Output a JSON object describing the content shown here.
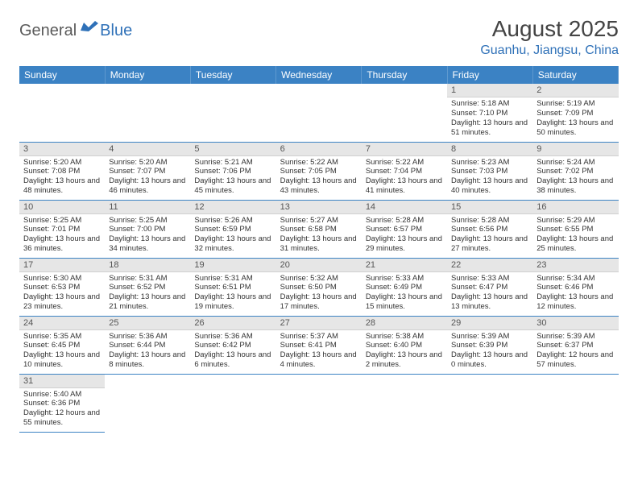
{
  "logo": {
    "part1": "General",
    "part2": "Blue"
  },
  "title": "August 2025",
  "location": "Guanhu, Jiangsu, China",
  "colors": {
    "header_bg": "#3b82c4",
    "header_text": "#ffffff",
    "daynum_bg": "#e6e6e6",
    "border": "#3b82c4",
    "logo_gray": "#5a5a5a",
    "logo_blue": "#2f71b8"
  },
  "weekdays": [
    "Sunday",
    "Monday",
    "Tuesday",
    "Wednesday",
    "Thursday",
    "Friday",
    "Saturday"
  ],
  "startOffset": 5,
  "days": [
    {
      "n": 1,
      "sr": "5:18 AM",
      "ss": "7:10 PM",
      "dl": "13 hours and 51 minutes."
    },
    {
      "n": 2,
      "sr": "5:19 AM",
      "ss": "7:09 PM",
      "dl": "13 hours and 50 minutes."
    },
    {
      "n": 3,
      "sr": "5:20 AM",
      "ss": "7:08 PM",
      "dl": "13 hours and 48 minutes."
    },
    {
      "n": 4,
      "sr": "5:20 AM",
      "ss": "7:07 PM",
      "dl": "13 hours and 46 minutes."
    },
    {
      "n": 5,
      "sr": "5:21 AM",
      "ss": "7:06 PM",
      "dl": "13 hours and 45 minutes."
    },
    {
      "n": 6,
      "sr": "5:22 AM",
      "ss": "7:05 PM",
      "dl": "13 hours and 43 minutes."
    },
    {
      "n": 7,
      "sr": "5:22 AM",
      "ss": "7:04 PM",
      "dl": "13 hours and 41 minutes."
    },
    {
      "n": 8,
      "sr": "5:23 AM",
      "ss": "7:03 PM",
      "dl": "13 hours and 40 minutes."
    },
    {
      "n": 9,
      "sr": "5:24 AM",
      "ss": "7:02 PM",
      "dl": "13 hours and 38 minutes."
    },
    {
      "n": 10,
      "sr": "5:25 AM",
      "ss": "7:01 PM",
      "dl": "13 hours and 36 minutes."
    },
    {
      "n": 11,
      "sr": "5:25 AM",
      "ss": "7:00 PM",
      "dl": "13 hours and 34 minutes."
    },
    {
      "n": 12,
      "sr": "5:26 AM",
      "ss": "6:59 PM",
      "dl": "13 hours and 32 minutes."
    },
    {
      "n": 13,
      "sr": "5:27 AM",
      "ss": "6:58 PM",
      "dl": "13 hours and 31 minutes."
    },
    {
      "n": 14,
      "sr": "5:28 AM",
      "ss": "6:57 PM",
      "dl": "13 hours and 29 minutes."
    },
    {
      "n": 15,
      "sr": "5:28 AM",
      "ss": "6:56 PM",
      "dl": "13 hours and 27 minutes."
    },
    {
      "n": 16,
      "sr": "5:29 AM",
      "ss": "6:55 PM",
      "dl": "13 hours and 25 minutes."
    },
    {
      "n": 17,
      "sr": "5:30 AM",
      "ss": "6:53 PM",
      "dl": "13 hours and 23 minutes."
    },
    {
      "n": 18,
      "sr": "5:31 AM",
      "ss": "6:52 PM",
      "dl": "13 hours and 21 minutes."
    },
    {
      "n": 19,
      "sr": "5:31 AM",
      "ss": "6:51 PM",
      "dl": "13 hours and 19 minutes."
    },
    {
      "n": 20,
      "sr": "5:32 AM",
      "ss": "6:50 PM",
      "dl": "13 hours and 17 minutes."
    },
    {
      "n": 21,
      "sr": "5:33 AM",
      "ss": "6:49 PM",
      "dl": "13 hours and 15 minutes."
    },
    {
      "n": 22,
      "sr": "5:33 AM",
      "ss": "6:47 PM",
      "dl": "13 hours and 13 minutes."
    },
    {
      "n": 23,
      "sr": "5:34 AM",
      "ss": "6:46 PM",
      "dl": "13 hours and 12 minutes."
    },
    {
      "n": 24,
      "sr": "5:35 AM",
      "ss": "6:45 PM",
      "dl": "13 hours and 10 minutes."
    },
    {
      "n": 25,
      "sr": "5:36 AM",
      "ss": "6:44 PM",
      "dl": "13 hours and 8 minutes."
    },
    {
      "n": 26,
      "sr": "5:36 AM",
      "ss": "6:42 PM",
      "dl": "13 hours and 6 minutes."
    },
    {
      "n": 27,
      "sr": "5:37 AM",
      "ss": "6:41 PM",
      "dl": "13 hours and 4 minutes."
    },
    {
      "n": 28,
      "sr": "5:38 AM",
      "ss": "6:40 PM",
      "dl": "13 hours and 2 minutes."
    },
    {
      "n": 29,
      "sr": "5:39 AM",
      "ss": "6:39 PM",
      "dl": "13 hours and 0 minutes."
    },
    {
      "n": 30,
      "sr": "5:39 AM",
      "ss": "6:37 PM",
      "dl": "12 hours and 57 minutes."
    },
    {
      "n": 31,
      "sr": "5:40 AM",
      "ss": "6:36 PM",
      "dl": "12 hours and 55 minutes."
    }
  ],
  "labels": {
    "sunrise": "Sunrise:",
    "sunset": "Sunset:",
    "daylight": "Daylight:"
  }
}
